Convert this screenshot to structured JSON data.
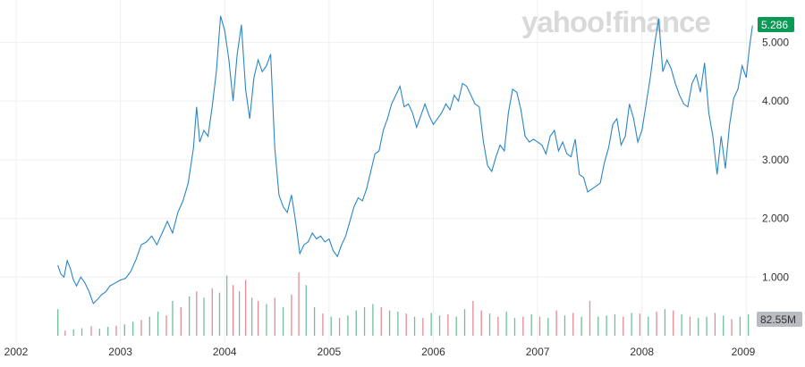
{
  "brand": {
    "logo_text": "yahoo!finance"
  },
  "colors": {
    "price_line": "#2b86c5",
    "up_volume": "#6fbf9a",
    "down_volume": "#e58b95",
    "last_price_badge": "#0a9a55",
    "volume_badge": "#b9bcc1",
    "grid": "#efefef"
  },
  "chart_data": {
    "type": "line",
    "x_ticks": [
      "2002",
      "2003",
      "2004",
      "2005",
      "2006",
      "2007",
      "2008",
      "2009"
    ],
    "y_ticks": [
      "1.000",
      "2.000",
      "3.000",
      "4.000",
      "5.000"
    ],
    "ylim": [
      0,
      5.6
    ],
    "xlim": [
      2002.0,
      2009.1
    ],
    "last_price_label": "5.286",
    "volume_label": "82.55M",
    "series": [
      {
        "points": [
          [
            2002.4,
            1.2
          ],
          [
            2002.43,
            1.05
          ],
          [
            2002.46,
            1.0
          ],
          [
            2002.49,
            1.28
          ],
          [
            2002.52,
            1.15
          ],
          [
            2002.55,
            0.95
          ],
          [
            2002.58,
            0.85
          ],
          [
            2002.62,
            1.0
          ],
          [
            2002.66,
            0.9
          ],
          [
            2002.7,
            0.75
          ],
          [
            2002.74,
            0.55
          ],
          [
            2002.78,
            0.62
          ],
          [
            2002.82,
            0.7
          ],
          [
            2002.86,
            0.75
          ],
          [
            2002.9,
            0.85
          ],
          [
            2002.95,
            0.9
          ],
          [
            2003.0,
            0.95
          ],
          [
            2003.05,
            0.98
          ],
          [
            2003.1,
            1.1
          ],
          [
            2003.15,
            1.3
          ],
          [
            2003.2,
            1.55
          ],
          [
            2003.25,
            1.6
          ],
          [
            2003.3,
            1.7
          ],
          [
            2003.35,
            1.55
          ],
          [
            2003.4,
            1.75
          ],
          [
            2003.45,
            1.95
          ],
          [
            2003.5,
            1.75
          ],
          [
            2003.55,
            2.1
          ],
          [
            2003.6,
            2.3
          ],
          [
            2003.65,
            2.6
          ],
          [
            2003.7,
            3.2
          ],
          [
            2003.73,
            3.9
          ],
          [
            2003.76,
            3.3
          ],
          [
            2003.8,
            3.5
          ],
          [
            2003.84,
            3.4
          ],
          [
            2003.88,
            3.9
          ],
          [
            2003.92,
            4.5
          ],
          [
            2003.96,
            5.45
          ],
          [
            2004.0,
            5.2
          ],
          [
            2004.04,
            4.7
          ],
          [
            2004.08,
            4.0
          ],
          [
            2004.12,
            4.8
          ],
          [
            2004.16,
            5.3
          ],
          [
            2004.2,
            4.2
          ],
          [
            2004.24,
            3.7
          ],
          [
            2004.28,
            4.4
          ],
          [
            2004.32,
            4.7
          ],
          [
            2004.36,
            4.5
          ],
          [
            2004.4,
            4.6
          ],
          [
            2004.44,
            4.8
          ],
          [
            2004.48,
            3.2
          ],
          [
            2004.52,
            2.4
          ],
          [
            2004.56,
            2.2
          ],
          [
            2004.6,
            2.1
          ],
          [
            2004.64,
            2.4
          ],
          [
            2004.68,
            1.95
          ],
          [
            2004.72,
            1.4
          ],
          [
            2004.76,
            1.55
          ],
          [
            2004.8,
            1.6
          ],
          [
            2004.84,
            1.75
          ],
          [
            2004.88,
            1.65
          ],
          [
            2004.92,
            1.7
          ],
          [
            2004.96,
            1.6
          ],
          [
            2005.0,
            1.65
          ],
          [
            2005.04,
            1.45
          ],
          [
            2005.08,
            1.35
          ],
          [
            2005.12,
            1.55
          ],
          [
            2005.16,
            1.7
          ],
          [
            2005.2,
            1.95
          ],
          [
            2005.24,
            2.2
          ],
          [
            2005.28,
            2.35
          ],
          [
            2005.32,
            2.3
          ],
          [
            2005.36,
            2.5
          ],
          [
            2005.4,
            2.8
          ],
          [
            2005.44,
            3.1
          ],
          [
            2005.48,
            3.15
          ],
          [
            2005.52,
            3.5
          ],
          [
            2005.56,
            3.7
          ],
          [
            2005.6,
            3.95
          ],
          [
            2005.64,
            4.1
          ],
          [
            2005.68,
            4.25
          ],
          [
            2005.72,
            3.9
          ],
          [
            2005.76,
            3.95
          ],
          [
            2005.8,
            3.8
          ],
          [
            2005.84,
            3.55
          ],
          [
            2005.88,
            3.75
          ],
          [
            2005.92,
            3.95
          ],
          [
            2005.96,
            3.75
          ],
          [
            2006.0,
            3.6
          ],
          [
            2006.04,
            3.7
          ],
          [
            2006.08,
            3.8
          ],
          [
            2006.12,
            3.95
          ],
          [
            2006.16,
            3.85
          ],
          [
            2006.2,
            4.1
          ],
          [
            2006.24,
            4.0
          ],
          [
            2006.28,
            4.3
          ],
          [
            2006.32,
            4.25
          ],
          [
            2006.36,
            4.1
          ],
          [
            2006.4,
            3.95
          ],
          [
            2006.44,
            3.9
          ],
          [
            2006.48,
            3.3
          ],
          [
            2006.52,
            2.9
          ],
          [
            2006.56,
            2.8
          ],
          [
            2006.6,
            3.05
          ],
          [
            2006.64,
            3.25
          ],
          [
            2006.68,
            3.15
          ],
          [
            2006.72,
            3.8
          ],
          [
            2006.76,
            4.2
          ],
          [
            2006.8,
            4.15
          ],
          [
            2006.84,
            3.85
          ],
          [
            2006.88,
            3.4
          ],
          [
            2006.92,
            3.3
          ],
          [
            2006.96,
            3.35
          ],
          [
            2007.0,
            3.3
          ],
          [
            2007.04,
            3.25
          ],
          [
            2007.08,
            3.1
          ],
          [
            2007.12,
            3.4
          ],
          [
            2007.16,
            3.5
          ],
          [
            2007.2,
            3.15
          ],
          [
            2007.24,
            3.3
          ],
          [
            2007.28,
            3.1
          ],
          [
            2007.32,
            3.05
          ],
          [
            2007.36,
            3.35
          ],
          [
            2007.4,
            2.75
          ],
          [
            2007.44,
            2.7
          ],
          [
            2007.48,
            2.45
          ],
          [
            2007.52,
            2.5
          ],
          [
            2007.56,
            2.55
          ],
          [
            2007.6,
            2.6
          ],
          [
            2007.64,
            2.95
          ],
          [
            2007.68,
            3.2
          ],
          [
            2007.72,
            3.6
          ],
          [
            2007.76,
            3.7
          ],
          [
            2007.8,
            3.25
          ],
          [
            2007.84,
            3.4
          ],
          [
            2007.88,
            3.95
          ],
          [
            2007.92,
            3.7
          ],
          [
            2007.96,
            3.3
          ],
          [
            2008.0,
            3.5
          ],
          [
            2008.04,
            3.95
          ],
          [
            2008.08,
            4.4
          ],
          [
            2008.12,
            4.95
          ],
          [
            2008.16,
            5.4
          ],
          [
            2008.2,
            4.5
          ],
          [
            2008.24,
            4.7
          ],
          [
            2008.28,
            4.55
          ],
          [
            2008.32,
            4.3
          ],
          [
            2008.36,
            4.1
          ],
          [
            2008.4,
            3.95
          ],
          [
            2008.44,
            3.9
          ],
          [
            2008.48,
            4.3
          ],
          [
            2008.52,
            4.45
          ],
          [
            2008.56,
            4.15
          ],
          [
            2008.6,
            4.65
          ],
          [
            2008.64,
            3.8
          ],
          [
            2008.68,
            3.4
          ],
          [
            2008.72,
            2.75
          ],
          [
            2008.76,
            3.4
          ],
          [
            2008.8,
            2.85
          ],
          [
            2008.84,
            3.6
          ],
          [
            2008.88,
            4.05
          ],
          [
            2008.92,
            4.2
          ],
          [
            2008.96,
            4.6
          ],
          [
            2009.0,
            4.4
          ],
          [
            2009.03,
            4.9
          ],
          [
            2009.06,
            5.286
          ]
        ]
      }
    ],
    "volume": {
      "ymax": 1.0,
      "bars": [
        [
          2002.4,
          0.42,
          "up"
        ],
        [
          2002.47,
          0.08,
          "down"
        ],
        [
          2002.55,
          0.1,
          "up"
        ],
        [
          2002.63,
          0.12,
          "up"
        ],
        [
          2002.72,
          0.15,
          "down"
        ],
        [
          2002.8,
          0.11,
          "up"
        ],
        [
          2002.88,
          0.14,
          "up"
        ],
        [
          2002.96,
          0.16,
          "down"
        ],
        [
          2003.04,
          0.18,
          "up"
        ],
        [
          2003.12,
          0.22,
          "up"
        ],
        [
          2003.2,
          0.25,
          "down"
        ],
        [
          2003.28,
          0.3,
          "up"
        ],
        [
          2003.36,
          0.38,
          "up"
        ],
        [
          2003.44,
          0.32,
          "down"
        ],
        [
          2003.5,
          0.55,
          "up"
        ],
        [
          2003.58,
          0.45,
          "down"
        ],
        [
          2003.66,
          0.62,
          "up"
        ],
        [
          2003.73,
          0.7,
          "down"
        ],
        [
          2003.8,
          0.6,
          "up"
        ],
        [
          2003.88,
          0.75,
          "down"
        ],
        [
          2003.95,
          0.68,
          "up"
        ],
        [
          2004.02,
          0.95,
          "up"
        ],
        [
          2004.08,
          0.8,
          "down"
        ],
        [
          2004.14,
          0.7,
          "up"
        ],
        [
          2004.2,
          0.88,
          "down"
        ],
        [
          2004.26,
          0.6,
          "up"
        ],
        [
          2004.32,
          0.55,
          "down"
        ],
        [
          2004.4,
          0.5,
          "up"
        ],
        [
          2004.48,
          0.6,
          "down"
        ],
        [
          2004.56,
          0.45,
          "up"
        ],
        [
          2004.64,
          0.65,
          "down"
        ],
        [
          2004.71,
          1.0,
          "down"
        ],
        [
          2004.78,
          0.8,
          "up"
        ],
        [
          2004.86,
          0.45,
          "up"
        ],
        [
          2004.94,
          0.35,
          "down"
        ],
        [
          2005.02,
          0.3,
          "up"
        ],
        [
          2005.1,
          0.28,
          "down"
        ],
        [
          2005.18,
          0.32,
          "up"
        ],
        [
          2005.26,
          0.4,
          "up"
        ],
        [
          2005.34,
          0.45,
          "up"
        ],
        [
          2005.42,
          0.5,
          "up"
        ],
        [
          2005.5,
          0.45,
          "down"
        ],
        [
          2005.58,
          0.4,
          "up"
        ],
        [
          2005.66,
          0.38,
          "up"
        ],
        [
          2005.74,
          0.35,
          "down"
        ],
        [
          2005.82,
          0.3,
          "up"
        ],
        [
          2005.9,
          0.28,
          "down"
        ],
        [
          2005.98,
          0.36,
          "up"
        ],
        [
          2006.06,
          0.32,
          "up"
        ],
        [
          2006.14,
          0.34,
          "down"
        ],
        [
          2006.22,
          0.3,
          "up"
        ],
        [
          2006.3,
          0.42,
          "up"
        ],
        [
          2006.38,
          0.55,
          "down"
        ],
        [
          2006.46,
          0.4,
          "down"
        ],
        [
          2006.54,
          0.35,
          "up"
        ],
        [
          2006.62,
          0.3,
          "down"
        ],
        [
          2006.7,
          0.38,
          "up"
        ],
        [
          2006.78,
          0.28,
          "up"
        ],
        [
          2006.86,
          0.3,
          "down"
        ],
        [
          2006.94,
          0.34,
          "up"
        ],
        [
          2007.02,
          0.3,
          "down"
        ],
        [
          2007.1,
          0.28,
          "up"
        ],
        [
          2007.18,
          0.4,
          "down"
        ],
        [
          2007.26,
          0.32,
          "up"
        ],
        [
          2007.34,
          0.36,
          "down"
        ],
        [
          2007.42,
          0.3,
          "up"
        ],
        [
          2007.5,
          0.55,
          "down"
        ],
        [
          2007.58,
          0.3,
          "up"
        ],
        [
          2007.66,
          0.32,
          "up"
        ],
        [
          2007.74,
          0.34,
          "up"
        ],
        [
          2007.82,
          0.3,
          "down"
        ],
        [
          2007.9,
          0.36,
          "up"
        ],
        [
          2007.98,
          0.35,
          "down"
        ],
        [
          2008.06,
          0.3,
          "up"
        ],
        [
          2008.14,
          0.38,
          "down"
        ],
        [
          2008.22,
          0.42,
          "up"
        ],
        [
          2008.3,
          0.4,
          "down"
        ],
        [
          2008.38,
          0.34,
          "up"
        ],
        [
          2008.46,
          0.3,
          "down"
        ],
        [
          2008.54,
          0.28,
          "up"
        ],
        [
          2008.62,
          0.3,
          "up"
        ],
        [
          2008.7,
          0.36,
          "down"
        ],
        [
          2008.78,
          0.32,
          "up"
        ],
        [
          2008.86,
          0.26,
          "down"
        ],
        [
          2008.94,
          0.3,
          "up"
        ],
        [
          2009.02,
          0.34,
          "up"
        ]
      ]
    }
  }
}
